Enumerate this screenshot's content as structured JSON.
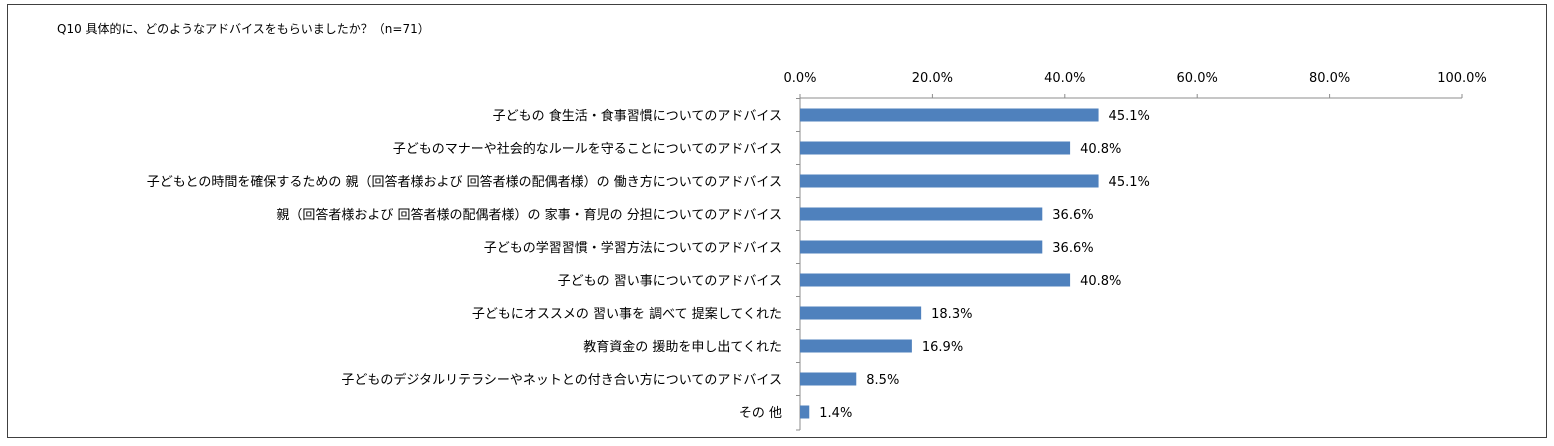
{
  "chart_data": {
    "type": "bar",
    "orientation": "horizontal",
    "title": "Q10 具体的に、どのようなアドバイスをもらいましたか？（n=71）",
    "categories": [
      "子どもの 食生活・食事習慣についてのアドバイス",
      "子どものマナーや社会的なルールを守ることについてのアドバイス",
      "子どもとの時間を確保するための 親（回答者様および 回答者様の配偶者様）の 働き方についてのアドバイス",
      "親（回答者様および 回答者様の配偶者様）の 家事・育児の 分担についてのアドバイス",
      "子どもの学習習慣・学習方法についてのアドバイス",
      "子どもの 習い事についてのアドバイス",
      "子どもにオススメの 習い事を 調べて 提案してくれた",
      "教育資金の 援助を申し出てくれた",
      "子どものデジタルリテラシーやネットとの付き合い方についてのアドバイス",
      "その 他"
    ],
    "values": [
      45.1,
      40.8,
      45.1,
      36.6,
      36.6,
      40.8,
      18.3,
      16.9,
      8.5,
      1.4
    ],
    "value_labels": [
      "45.1%",
      "40.8%",
      "45.1%",
      "36.6%",
      "36.6%",
      "40.8%",
      "18.3%",
      "16.9%",
      "8.5%",
      "1.4%"
    ],
    "xlim": [
      0,
      100
    ],
    "ticks": [
      0,
      20,
      40,
      60,
      80,
      100
    ],
    "tick_labels": [
      "0.0%",
      "20.0%",
      "40.0%",
      "60.0%",
      "80.0%",
      "100.0%"
    ],
    "axis_position": "top",
    "grid": false,
    "legend": "none",
    "bar_color": "#4f81bd"
  }
}
